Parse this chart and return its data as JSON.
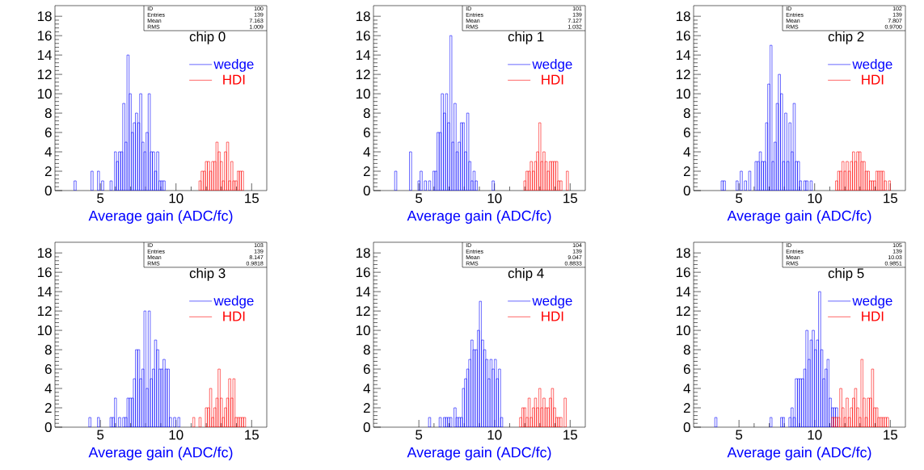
{
  "chart_data": [
    {
      "type": "histogram",
      "title": "chip 0",
      "xlabel": "Average gain (ADC/fc)",
      "annotations": [
        "ID",
        "100",
        "Entries",
        "139",
        "Mean",
        "7.163",
        "RMS",
        "1.009"
      ],
      "xlim": [
        2,
        16
      ],
      "ylim": [
        0,
        19.1
      ],
      "xticks": [
        5,
        10,
        15
      ],
      "yticks": [
        0,
        2,
        4,
        6,
        8,
        10,
        12,
        14,
        16,
        18
      ],
      "legend": "top right",
      "bins": [
        2,
        2.14,
        2.28,
        2.42,
        2.56,
        2.7,
        2.84,
        2.98,
        3.12,
        3.26,
        3.4,
        3.54,
        3.68,
        3.82,
        3.96,
        4.1,
        4.24,
        4.38,
        4.52,
        4.66,
        4.8,
        4.94,
        5.08,
        5.22,
        5.36,
        5.5,
        5.64,
        5.78,
        5.92,
        6.06,
        6.2,
        6.34,
        6.48,
        6.62,
        6.76,
        6.9,
        7.04,
        7.18,
        7.32,
        7.46,
        7.6,
        7.74,
        7.88,
        8.02,
        8.16,
        8.3,
        8.44,
        8.58,
        8.72,
        8.86,
        9,
        9.14,
        9.28,
        9.42,
        9.56,
        9.7,
        9.84,
        9.98,
        10.12,
        10.26,
        10.4,
        10.54,
        10.68,
        10.82,
        10.96,
        11.1,
        11.24,
        11.38,
        11.52,
        11.66,
        11.8,
        11.94,
        12.08,
        12.22,
        12.36,
        12.5,
        12.64,
        12.78,
        12.92,
        13.06,
        13.2,
        13.34,
        13.48,
        13.62,
        13.76,
        13.9,
        14.04,
        14.18,
        14.32,
        14.46,
        14.6,
        14.74,
        14.88,
        15.02,
        15.16,
        15.3,
        15.44,
        15.58,
        15.72,
        15.86,
        16
      ],
      "series": [
        {
          "name": "wedge",
          "color": "#0000ff",
          "values": [
            null,
            null,
            null,
            null,
            null,
            null,
            null,
            null,
            null,
            1,
            null,
            null,
            null,
            null,
            null,
            null,
            null,
            2,
            null,
            null,
            2,
            null,
            1,
            null,
            null,
            null,
            1,
            null,
            4,
            3,
            4,
            4,
            9,
            5,
            14,
            10,
            6,
            7,
            8,
            7,
            10,
            5,
            4,
            6,
            10,
            4,
            4,
            2,
            4,
            1,
            1,
            1,
            null,
            null,
            null,
            null,
            null,
            null,
            null,
            null,
            null,
            null,
            null,
            null,
            null,
            null,
            null,
            null,
            null,
            null,
            null,
            null,
            null,
            null,
            null,
            null,
            null,
            null,
            null,
            null,
            null,
            null,
            null,
            null,
            null,
            null,
            null,
            null,
            null,
            null,
            null,
            null,
            null,
            null,
            null,
            null,
            null,
            null,
            null,
            null
          ]
        },
        {
          "name": "HDI",
          "color": "#ff0000",
          "values": [
            null,
            null,
            null,
            null,
            null,
            null,
            null,
            null,
            null,
            null,
            null,
            null,
            null,
            null,
            null,
            null,
            null,
            null,
            null,
            null,
            null,
            null,
            null,
            null,
            null,
            null,
            null,
            null,
            null,
            null,
            null,
            null,
            null,
            null,
            null,
            null,
            null,
            null,
            null,
            null,
            null,
            null,
            null,
            null,
            null,
            null,
            null,
            null,
            null,
            null,
            null,
            null,
            null,
            null,
            null,
            null,
            null,
            null,
            null,
            null,
            null,
            null,
            null,
            null,
            null,
            null,
            null,
            null,
            1,
            2,
            2,
            3,
            3,
            2,
            3,
            3,
            5,
            4,
            3,
            1,
            4,
            5,
            1,
            3,
            1,
            1,
            2,
            2,
            2,
            null,
            null,
            null,
            null,
            null,
            null,
            null,
            null,
            null,
            null,
            null
          ]
        }
      ]
    },
    {
      "type": "histogram",
      "title": "chip 1",
      "xlabel": "Average gain (ADC/fc)",
      "annotations": [
        "ID",
        "101",
        "Entries",
        "139",
        "Mean",
        "7.127",
        "RMS",
        "1.032"
      ],
      "xlim": [
        2,
        16
      ],
      "ylim": [
        0,
        19.1
      ],
      "xticks": [
        5,
        10,
        15
      ],
      "yticks": [
        0,
        2,
        4,
        6,
        8,
        10,
        12,
        14,
        16,
        18
      ],
      "legend": "top right",
      "bins": [
        2,
        2.14,
        2.28,
        2.42,
        2.56,
        2.7,
        2.84,
        2.98,
        3.12,
        3.26,
        3.4,
        3.54,
        3.68,
        3.82,
        3.96,
        4.1,
        4.24,
        4.38,
        4.52,
        4.66,
        4.8,
        4.94,
        5.08,
        5.22,
        5.36,
        5.5,
        5.64,
        5.78,
        5.92,
        6.06,
        6.2,
        6.34,
        6.48,
        6.62,
        6.76,
        6.9,
        7.04,
        7.18,
        7.32,
        7.46,
        7.6,
        7.74,
        7.88,
        8.02,
        8.16,
        8.3,
        8.44,
        8.58,
        8.72,
        8.86,
        9,
        9.14,
        9.28,
        9.42,
        9.56,
        9.7,
        9.84,
        9.98,
        10.12,
        10.26,
        10.4,
        10.54,
        10.68,
        10.82,
        10.96,
        11.1,
        11.24,
        11.38,
        11.52,
        11.66,
        11.8,
        11.94,
        12.08,
        12.22,
        12.36,
        12.5,
        12.64,
        12.78,
        12.92,
        13.06,
        13.2,
        13.34,
        13.48,
        13.62,
        13.76,
        13.9,
        14.04,
        14.18,
        14.32,
        14.46,
        14.6,
        14.74,
        14.88,
        15.02,
        15.16,
        15.3,
        15.44,
        15.58,
        15.72,
        15.86,
        16
      ],
      "series": [
        {
          "name": "wedge",
          "color": "#0000ff",
          "values": [
            null,
            null,
            null,
            null,
            null,
            null,
            null,
            null,
            null,
            null,
            2,
            null,
            null,
            null,
            null,
            null,
            null,
            4,
            null,
            null,
            null,
            1,
            2,
            null,
            1,
            null,
            1,
            null,
            2,
            2,
            6,
            6,
            10,
            8,
            10,
            7,
            16,
            5,
            9,
            4,
            5,
            7,
            7,
            4,
            8,
            3,
            1,
            2,
            1,
            null,
            null,
            null,
            null,
            null,
            null,
            null,
            1,
            null,
            null,
            null,
            null,
            null,
            null,
            null,
            null,
            null,
            null,
            null,
            null,
            null,
            null,
            null,
            null,
            null,
            null,
            null,
            null,
            null,
            null,
            null,
            null,
            null,
            null,
            null,
            null,
            null,
            null,
            null,
            null,
            null,
            null,
            null,
            null,
            null,
            null,
            null,
            null,
            null,
            null,
            null
          ]
        },
        {
          "name": "HDI",
          "color": "#ff0000",
          "values": [
            null,
            null,
            null,
            null,
            null,
            null,
            null,
            null,
            null,
            null,
            null,
            null,
            null,
            null,
            null,
            null,
            null,
            null,
            null,
            null,
            null,
            null,
            null,
            null,
            null,
            null,
            null,
            null,
            null,
            null,
            null,
            null,
            null,
            null,
            null,
            null,
            null,
            null,
            null,
            null,
            null,
            null,
            null,
            null,
            null,
            null,
            null,
            null,
            null,
            null,
            null,
            null,
            null,
            null,
            null,
            null,
            null,
            null,
            null,
            null,
            null,
            null,
            null,
            null,
            null,
            null,
            null,
            null,
            null,
            null,
            null,
            1,
            2,
            2,
            3,
            2,
            3,
            4,
            7,
            3,
            4,
            3,
            2,
            3,
            3,
            3,
            3,
            1,
            1,
            null,
            null,
            2,
            null,
            null,
            null,
            null,
            null,
            null,
            null,
            null
          ]
        }
      ]
    },
    {
      "type": "histogram",
      "title": "chip 2",
      "xlabel": "Average gain (ADC/fc)",
      "annotations": [
        "ID",
        "102",
        "Entries",
        "139",
        "Mean",
        "7.807",
        "RMS",
        "0.9700"
      ],
      "xlim": [
        2,
        16
      ],
      "ylim": [
        0,
        19.1
      ],
      "xticks": [
        5,
        10,
        15
      ],
      "yticks": [
        0,
        2,
        4,
        6,
        8,
        10,
        12,
        14,
        16,
        18
      ],
      "legend": "top right",
      "bins": [
        2,
        2.14,
        2.28,
        2.42,
        2.56,
        2.7,
        2.84,
        2.98,
        3.12,
        3.26,
        3.4,
        3.54,
        3.68,
        3.82,
        3.96,
        4.1,
        4.24,
        4.38,
        4.52,
        4.66,
        4.8,
        4.94,
        5.08,
        5.22,
        5.36,
        5.5,
        5.64,
        5.78,
        5.92,
        6.06,
        6.2,
        6.34,
        6.48,
        6.62,
        6.76,
        6.9,
        7.04,
        7.18,
        7.32,
        7.46,
        7.6,
        7.74,
        7.88,
        8.02,
        8.16,
        8.3,
        8.44,
        8.58,
        8.72,
        8.86,
        9,
        9.14,
        9.28,
        9.42,
        9.56,
        9.7,
        9.84,
        9.98,
        10.12,
        10.26,
        10.4,
        10.54,
        10.68,
        10.82,
        10.96,
        11.1,
        11.24,
        11.38,
        11.52,
        11.66,
        11.8,
        11.94,
        12.08,
        12.22,
        12.36,
        12.5,
        12.64,
        12.78,
        12.92,
        13.06,
        13.2,
        13.34,
        13.48,
        13.62,
        13.76,
        13.9,
        14.04,
        14.18,
        14.32,
        14.46,
        14.6,
        14.74,
        14.88,
        15.02,
        15.16,
        15.3,
        15.44,
        15.58,
        15.72,
        15.86,
        16
      ],
      "series": [
        {
          "name": "wedge",
          "color": "#0000ff",
          "values": [
            null,
            null,
            null,
            null,
            null,
            null,
            null,
            null,
            null,
            null,
            null,
            null,
            null,
            1,
            1,
            null,
            null,
            null,
            null,
            null,
            1,
            null,
            2,
            null,
            1,
            null,
            2,
            null,
            null,
            3,
            3,
            4,
            3,
            3,
            7,
            11,
            15,
            3,
            5,
            9,
            12,
            10,
            3,
            8,
            3,
            7,
            4,
            9,
            3,
            3,
            1,
            null,
            1,
            1,
            null,
            1,
            null,
            null,
            null,
            null,
            null,
            null,
            null,
            null,
            null,
            null,
            null,
            null,
            null,
            null,
            null,
            null,
            null,
            null,
            null,
            null,
            null,
            null,
            null,
            null,
            null,
            null,
            null,
            null,
            null,
            null,
            null,
            null,
            null,
            null,
            null,
            null,
            null,
            null,
            null,
            null,
            null,
            null,
            null,
            null
          ]
        },
        {
          "name": "HDI",
          "color": "#ff0000",
          "values": [
            null,
            null,
            null,
            null,
            null,
            null,
            null,
            null,
            null,
            null,
            null,
            null,
            null,
            null,
            null,
            null,
            null,
            null,
            null,
            null,
            null,
            null,
            null,
            null,
            null,
            null,
            null,
            null,
            null,
            null,
            null,
            null,
            null,
            null,
            null,
            null,
            null,
            null,
            null,
            null,
            null,
            null,
            null,
            null,
            null,
            null,
            null,
            null,
            null,
            null,
            null,
            null,
            null,
            null,
            null,
            null,
            null,
            null,
            null,
            null,
            null,
            null,
            null,
            null,
            null,
            null,
            null,
            1,
            2,
            2,
            3,
            2,
            3,
            2,
            3,
            4,
            3,
            4,
            4,
            3,
            3,
            2,
            2,
            1,
            1,
            1,
            2,
            2,
            2,
            2,
            1,
            null,
            1,
            null,
            null,
            null,
            null,
            null,
            null,
            null
          ]
        }
      ]
    },
    {
      "type": "histogram",
      "title": "chip 3",
      "xlabel": "Average gain (ADC/fc)",
      "annotations": [
        "ID",
        "103",
        "Entries",
        "139",
        "Mean",
        "8.147",
        "RMS",
        "0.9818"
      ],
      "xlim": [
        2,
        16
      ],
      "ylim": [
        0,
        19.1
      ],
      "xticks": [
        5,
        10,
        15
      ],
      "yticks": [
        0,
        2,
        4,
        6,
        8,
        10,
        12,
        14,
        16,
        18
      ],
      "legend": "top right",
      "bins": [
        2,
        2.14,
        2.28,
        2.42,
        2.56,
        2.7,
        2.84,
        2.98,
        3.12,
        3.26,
        3.4,
        3.54,
        3.68,
        3.82,
        3.96,
        4.1,
        4.24,
        4.38,
        4.52,
        4.66,
        4.8,
        4.94,
        5.08,
        5.22,
        5.36,
        5.5,
        5.64,
        5.78,
        5.92,
        6.06,
        6.2,
        6.34,
        6.48,
        6.62,
        6.76,
        6.9,
        7.04,
        7.18,
        7.32,
        7.46,
        7.6,
        7.74,
        7.88,
        8.02,
        8.16,
        8.3,
        8.44,
        8.58,
        8.72,
        8.86,
        9,
        9.14,
        9.28,
        9.42,
        9.56,
        9.7,
        9.84,
        9.98,
        10.12,
        10.26,
        10.4,
        10.54,
        10.68,
        10.82,
        10.96,
        11.1,
        11.24,
        11.38,
        11.52,
        11.66,
        11.8,
        11.94,
        12.08,
        12.22,
        12.36,
        12.5,
        12.64,
        12.78,
        12.92,
        13.06,
        13.2,
        13.34,
        13.48,
        13.62,
        13.76,
        13.9,
        14.04,
        14.18,
        14.32,
        14.46,
        14.6,
        14.74,
        14.88,
        15.02,
        15.16,
        15.3,
        15.44,
        15.58,
        15.72,
        15.86,
        16
      ],
      "series": [
        {
          "name": "wedge",
          "color": "#0000ff",
          "values": [
            null,
            null,
            null,
            null,
            null,
            null,
            null,
            null,
            null,
            null,
            null,
            null,
            null,
            null,
            null,
            null,
            1,
            null,
            null,
            null,
            1,
            null,
            null,
            null,
            null,
            null,
            1,
            1,
            3,
            null,
            1,
            null,
            1,
            1,
            3,
            3,
            3,
            5,
            8,
            8,
            5,
            6,
            12,
            4,
            12,
            5,
            6,
            9,
            8,
            6,
            6,
            7,
            6,
            6,
            1,
            null,
            1,
            null,
            1,
            null,
            null,
            null,
            null,
            null,
            null,
            null,
            null,
            null,
            null,
            null,
            null,
            null,
            null,
            null,
            null,
            null,
            null,
            null,
            null,
            null,
            null,
            null,
            null,
            null,
            null,
            null,
            null,
            null,
            null,
            null,
            null,
            null,
            null,
            null,
            null,
            null,
            null,
            null,
            null,
            null
          ]
        },
        {
          "name": "HDI",
          "color": "#ff0000",
          "values": [
            null,
            null,
            null,
            null,
            null,
            null,
            null,
            null,
            null,
            null,
            null,
            null,
            null,
            null,
            null,
            null,
            null,
            null,
            null,
            null,
            null,
            null,
            null,
            null,
            null,
            null,
            null,
            null,
            null,
            null,
            null,
            null,
            null,
            null,
            null,
            null,
            null,
            null,
            null,
            null,
            null,
            null,
            null,
            null,
            null,
            null,
            null,
            null,
            null,
            null,
            null,
            null,
            null,
            null,
            null,
            null,
            null,
            null,
            null,
            null,
            null,
            null,
            null,
            null,
            null,
            1,
            null,
            null,
            1,
            null,
            null,
            2,
            2,
            4,
            1,
            2,
            3,
            6,
            3,
            1,
            2,
            3,
            5,
            3,
            5,
            1,
            1,
            1,
            1,
            1,
            null,
            null,
            null,
            null,
            null,
            null,
            null,
            null,
            null,
            null
          ]
        }
      ]
    },
    {
      "type": "histogram",
      "title": "chip 4",
      "xlabel": "Average gain (ADC/fc)",
      "annotations": [
        "ID",
        "104",
        "Entries",
        "139",
        "Mean",
        "9.047",
        "RMS",
        "0.8833"
      ],
      "xlim": [
        2,
        16
      ],
      "ylim": [
        0,
        19.1
      ],
      "xticks": [
        5,
        10,
        15
      ],
      "yticks": [
        0,
        2,
        4,
        6,
        8,
        10,
        12,
        14,
        16,
        18
      ],
      "legend": "top right",
      "bins": [
        2,
        2.14,
        2.28,
        2.42,
        2.56,
        2.7,
        2.84,
        2.98,
        3.12,
        3.26,
        3.4,
        3.54,
        3.68,
        3.82,
        3.96,
        4.1,
        4.24,
        4.38,
        4.52,
        4.66,
        4.8,
        4.94,
        5.08,
        5.22,
        5.36,
        5.5,
        5.64,
        5.78,
        5.92,
        6.06,
        6.2,
        6.34,
        6.48,
        6.62,
        6.76,
        6.9,
        7.04,
        7.18,
        7.32,
        7.46,
        7.6,
        7.74,
        7.88,
        8.02,
        8.16,
        8.3,
        8.44,
        8.58,
        8.72,
        8.86,
        9,
        9.14,
        9.28,
        9.42,
        9.56,
        9.7,
        9.84,
        9.98,
        10.12,
        10.26,
        10.4,
        10.54,
        10.68,
        10.82,
        10.96,
        11.1,
        11.24,
        11.38,
        11.52,
        11.66,
        11.8,
        11.94,
        12.08,
        12.22,
        12.36,
        12.5,
        12.64,
        12.78,
        12.92,
        13.06,
        13.2,
        13.34,
        13.48,
        13.62,
        13.76,
        13.9,
        14.04,
        14.18,
        14.32,
        14.46,
        14.6,
        14.74,
        14.88,
        15.02,
        15.16,
        15.3,
        15.44,
        15.58,
        15.72,
        15.86,
        16
      ],
      "series": [
        {
          "name": "wedge",
          "color": "#0000ff",
          "values": [
            null,
            null,
            null,
            null,
            null,
            null,
            null,
            null,
            null,
            null,
            null,
            null,
            null,
            null,
            null,
            null,
            null,
            null,
            null,
            null,
            null,
            null,
            null,
            null,
            null,
            null,
            1,
            null,
            null,
            null,
            null,
            1,
            null,
            1,
            1,
            1,
            1,
            null,
            2,
            1,
            1,
            1,
            4,
            5,
            6,
            7,
            9,
            8,
            8,
            10,
            13,
            9,
            8,
            7,
            5,
            7,
            6,
            7,
            5,
            6,
            1,
            null,
            null,
            null,
            null,
            null,
            null,
            null,
            null,
            null,
            null,
            null,
            null,
            null,
            null,
            null,
            null,
            null,
            null,
            null,
            null,
            null,
            null,
            null,
            null,
            null,
            null,
            null,
            null,
            null,
            null,
            null,
            null,
            null,
            null,
            null,
            null,
            null,
            null,
            null
          ]
        },
        {
          "name": "HDI",
          "color": "#ff0000",
          "values": [
            null,
            null,
            null,
            null,
            null,
            null,
            null,
            null,
            null,
            null,
            null,
            null,
            null,
            null,
            null,
            null,
            null,
            null,
            null,
            null,
            null,
            null,
            null,
            null,
            null,
            null,
            null,
            null,
            null,
            null,
            null,
            null,
            null,
            null,
            null,
            null,
            null,
            null,
            null,
            null,
            null,
            null,
            null,
            null,
            null,
            null,
            null,
            null,
            null,
            null,
            null,
            null,
            null,
            null,
            null,
            null,
            null,
            null,
            null,
            null,
            null,
            null,
            null,
            null,
            null,
            null,
            null,
            null,
            null,
            1,
            2,
            2,
            1,
            3,
            1,
            2,
            3,
            2,
            4,
            2,
            3,
            2,
            2,
            3,
            4,
            2,
            1,
            1,
            1,
            null,
            3,
            null,
            null,
            null,
            null,
            null,
            null,
            null,
            null,
            null
          ]
        }
      ]
    },
    {
      "type": "histogram",
      "title": "chip 5",
      "xlabel": "Average gain (ADC/fc)",
      "annotations": [
        "ID",
        "105",
        "Entries",
        "139",
        "Mean",
        "10.03",
        "RMS",
        "0.9851"
      ],
      "xlim": [
        2,
        16
      ],
      "ylim": [
        0,
        19.1
      ],
      "xticks": [
        5,
        10,
        15
      ],
      "yticks": [
        0,
        2,
        4,
        6,
        8,
        10,
        12,
        14,
        16,
        18
      ],
      "legend": "top right",
      "bins": [
        2,
        2.14,
        2.28,
        2.42,
        2.56,
        2.7,
        2.84,
        2.98,
        3.12,
        3.26,
        3.4,
        3.54,
        3.68,
        3.82,
        3.96,
        4.1,
        4.24,
        4.38,
        4.52,
        4.66,
        4.8,
        4.94,
        5.08,
        5.22,
        5.36,
        5.5,
        5.64,
        5.78,
        5.92,
        6.06,
        6.2,
        6.34,
        6.48,
        6.62,
        6.76,
        6.9,
        7.04,
        7.18,
        7.32,
        7.46,
        7.6,
        7.74,
        7.88,
        8.02,
        8.16,
        8.3,
        8.44,
        8.58,
        8.72,
        8.86,
        9,
        9.14,
        9.28,
        9.42,
        9.56,
        9.7,
        9.84,
        9.98,
        10.12,
        10.26,
        10.4,
        10.54,
        10.68,
        10.82,
        10.96,
        11.1,
        11.24,
        11.38,
        11.52,
        11.66,
        11.8,
        11.94,
        12.08,
        12.22,
        12.36,
        12.5,
        12.64,
        12.78,
        12.92,
        13.06,
        13.2,
        13.34,
        13.48,
        13.62,
        13.76,
        13.9,
        14.04,
        14.18,
        14.32,
        14.46,
        14.6,
        14.74,
        14.88,
        15.02,
        15.16,
        15.3,
        15.44,
        15.58,
        15.72,
        15.86,
        16
      ],
      "series": [
        {
          "name": "wedge",
          "color": "#0000ff",
          "values": [
            null,
            null,
            null,
            null,
            null,
            null,
            null,
            null,
            null,
            null,
            1,
            null,
            null,
            null,
            null,
            null,
            null,
            null,
            null,
            null,
            null,
            null,
            null,
            null,
            null,
            null,
            null,
            null,
            null,
            null,
            null,
            null,
            null,
            null,
            null,
            null,
            1,
            null,
            null,
            null,
            null,
            1,
            1,
            null,
            null,
            1,
            2,
            1,
            5,
            5,
            5,
            5,
            6,
            10,
            7,
            9,
            10,
            8,
            9,
            14,
            8,
            5,
            6,
            7,
            3,
            2,
            2,
            2,
            null,
            null,
            null,
            null,
            null,
            null,
            null,
            null,
            null,
            null,
            null,
            null,
            null,
            null,
            null,
            null,
            null,
            null,
            null,
            null,
            null,
            null,
            null,
            null,
            null,
            null,
            null,
            null,
            null,
            null,
            null,
            null
          ]
        },
        {
          "name": "HDI",
          "color": "#ff0000",
          "values": [
            null,
            null,
            null,
            null,
            null,
            null,
            null,
            null,
            null,
            null,
            null,
            null,
            null,
            null,
            null,
            null,
            null,
            null,
            null,
            null,
            null,
            null,
            null,
            null,
            null,
            null,
            null,
            null,
            null,
            null,
            null,
            null,
            null,
            null,
            null,
            null,
            null,
            null,
            null,
            null,
            null,
            null,
            null,
            null,
            null,
            null,
            null,
            null,
            null,
            null,
            null,
            null,
            null,
            null,
            null,
            null,
            null,
            null,
            null,
            null,
            null,
            null,
            null,
            null,
            null,
            1,
            1,
            1,
            1,
            4,
            2,
            1,
            3,
            1,
            2,
            3,
            4,
            2,
            1,
            7,
            3,
            1,
            3,
            3,
            6,
            2,
            2,
            1,
            1,
            1,
            1,
            1,
            null,
            null,
            null,
            null,
            null,
            null,
            null,
            null
          ]
        }
      ]
    }
  ]
}
